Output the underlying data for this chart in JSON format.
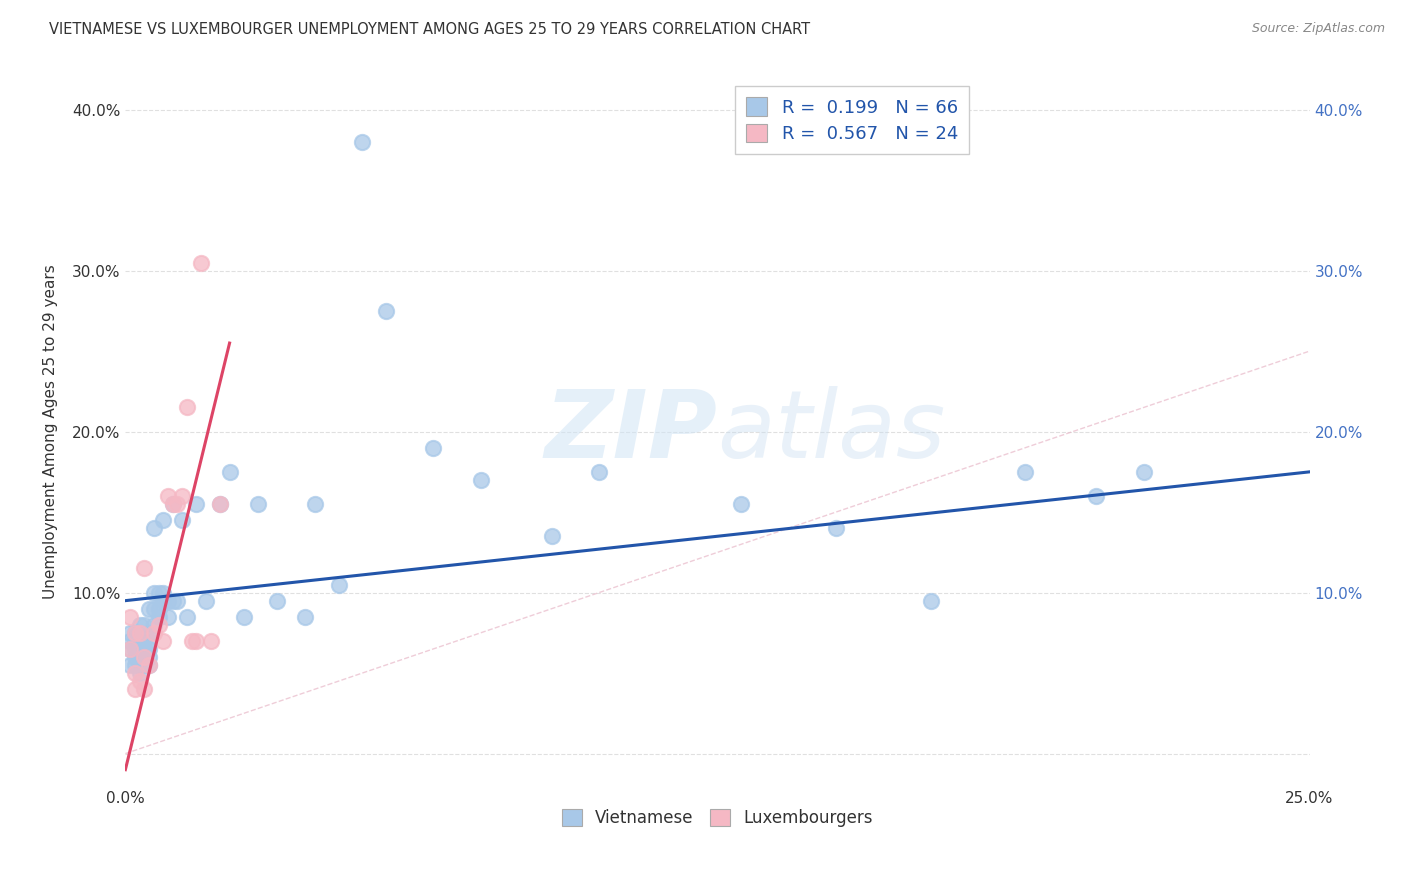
{
  "title": "VIETNAMESE VS LUXEMBOURGER UNEMPLOYMENT AMONG AGES 25 TO 29 YEARS CORRELATION CHART",
  "source": "Source: ZipAtlas.com",
  "ylabel": "Unemployment Among Ages 25 to 29 years",
  "xlim": [
    0.0,
    0.25
  ],
  "ylim": [
    -0.02,
    0.42
  ],
  "xticks": [
    0.0,
    0.05,
    0.1,
    0.15,
    0.2,
    0.25
  ],
  "xticklabels": [
    "0.0%",
    "",
    "",
    "",
    "",
    "25.0%"
  ],
  "yticks": [
    0.0,
    0.1,
    0.2,
    0.3,
    0.4
  ],
  "yticklabels": [
    "",
    "10.0%",
    "20.0%",
    "30.0%",
    "40.0%"
  ],
  "viet_color": "#a8c8e8",
  "lux_color": "#f5b8c4",
  "viet_line_color": "#2255aa",
  "lux_line_color": "#dd4466",
  "diag_color": "#cccccc",
  "watermark_zip": "ZIP",
  "watermark_atlas": "atlas",
  "background_color": "#ffffff",
  "grid_color": "#e0e0e0",
  "title_color": "#333333",
  "label_color": "#333333",
  "right_tick_color": "#4472c4",
  "legend_r_color": "#2255aa",
  "legend_n_color": "#2255aa",
  "vietnamese_x": [
    0.001,
    0.001,
    0.001,
    0.001,
    0.002,
    0.002,
    0.002,
    0.002,
    0.002,
    0.003,
    0.003,
    0.003,
    0.003,
    0.003,
    0.003,
    0.003,
    0.004,
    0.004,
    0.004,
    0.004,
    0.004,
    0.005,
    0.005,
    0.005,
    0.005,
    0.005,
    0.005,
    0.006,
    0.006,
    0.006,
    0.006,
    0.007,
    0.007,
    0.007,
    0.008,
    0.008,
    0.008,
    0.009,
    0.009,
    0.01,
    0.01,
    0.011,
    0.012,
    0.013,
    0.015,
    0.017,
    0.02,
    0.022,
    0.025,
    0.028,
    0.032,
    0.038,
    0.04,
    0.045,
    0.05,
    0.055,
    0.065,
    0.075,
    0.09,
    0.1,
    0.13,
    0.15,
    0.17,
    0.19,
    0.205,
    0.215
  ],
  "vietnamese_y": [
    0.055,
    0.065,
    0.07,
    0.075,
    0.055,
    0.06,
    0.065,
    0.07,
    0.075,
    0.05,
    0.055,
    0.06,
    0.065,
    0.07,
    0.075,
    0.08,
    0.055,
    0.06,
    0.065,
    0.07,
    0.08,
    0.055,
    0.06,
    0.065,
    0.07,
    0.075,
    0.09,
    0.08,
    0.09,
    0.1,
    0.14,
    0.085,
    0.09,
    0.1,
    0.095,
    0.1,
    0.145,
    0.085,
    0.095,
    0.095,
    0.155,
    0.095,
    0.145,
    0.085,
    0.155,
    0.095,
    0.155,
    0.175,
    0.085,
    0.155,
    0.095,
    0.085,
    0.155,
    0.105,
    0.38,
    0.275,
    0.19,
    0.17,
    0.135,
    0.175,
    0.155,
    0.14,
    0.095,
    0.175,
    0.16,
    0.175
  ],
  "luxembourger_x": [
    0.001,
    0.001,
    0.002,
    0.002,
    0.002,
    0.003,
    0.003,
    0.004,
    0.004,
    0.004,
    0.005,
    0.006,
    0.007,
    0.008,
    0.009,
    0.01,
    0.011,
    0.012,
    0.013,
    0.014,
    0.015,
    0.016,
    0.018,
    0.02
  ],
  "luxembourger_y": [
    0.085,
    0.065,
    0.04,
    0.05,
    0.075,
    0.045,
    0.075,
    0.04,
    0.06,
    0.115,
    0.055,
    0.075,
    0.08,
    0.07,
    0.16,
    0.155,
    0.155,
    0.16,
    0.215,
    0.07,
    0.07,
    0.305,
    0.07,
    0.155
  ],
  "viet_line_x0": 0.0,
  "viet_line_y0": 0.095,
  "viet_line_x1": 0.25,
  "viet_line_y1": 0.175,
  "lux_line_x0": 0.0,
  "lux_line_y0": -0.01,
  "lux_line_x1": 0.022,
  "lux_line_y1": 0.255
}
